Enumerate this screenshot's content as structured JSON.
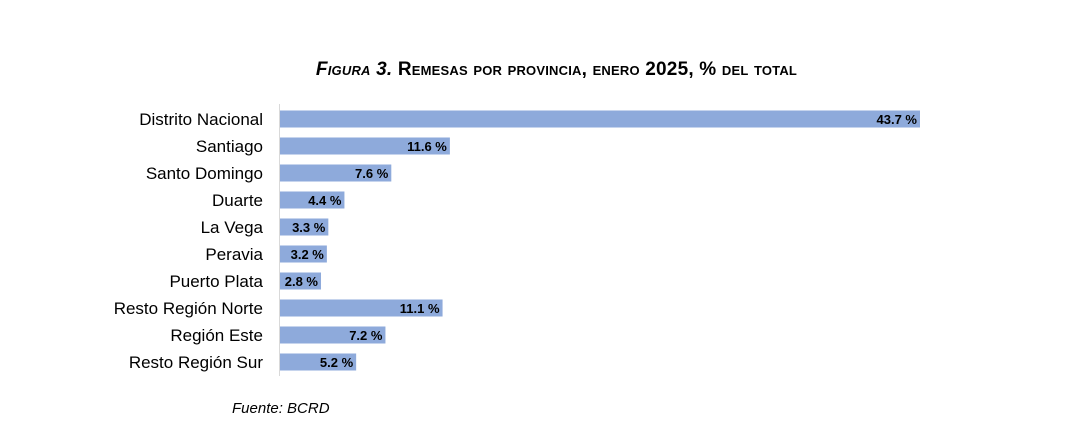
{
  "chart_data": {
    "type": "bar",
    "orientation": "horizontal",
    "title_prefix": "Figura 3.",
    "title": "Remesas por provincia, enero 2025, % del total",
    "categories": [
      "Distrito Nacional",
      "Santiago",
      "Santo Domingo",
      "Duarte",
      "La Vega",
      "Peravia",
      "Puerto Plata",
      "Resto Región Norte",
      "Región Este",
      "Resto Región Sur"
    ],
    "values": [
      43.7,
      11.6,
      7.6,
      4.4,
      3.3,
      3.2,
      2.8,
      11.1,
      7.2,
      5.2
    ],
    "value_labels": [
      "43.7 %",
      "11.6 %",
      "7.6 %",
      "4.4 %",
      "3.3 %",
      "3.2 %",
      "2.8 %",
      "11.1 %",
      "7.2 %",
      "5.2 %"
    ],
    "xlim": [
      0,
      45
    ],
    "grid": false,
    "legend": "none",
    "bar_color": "#8eaadb",
    "source": "Fuente: BCRD"
  }
}
